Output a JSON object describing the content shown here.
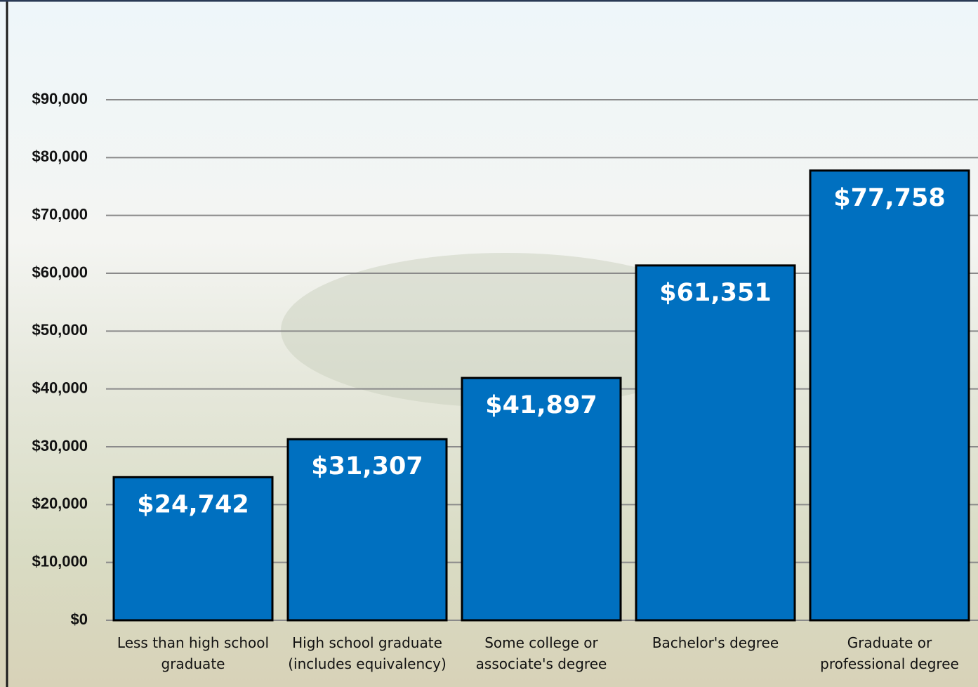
{
  "chart_data": {
    "type": "bar",
    "categories": [
      "Less than high school graduate",
      "High school graduate (includes equivalency)",
      "Some college or associate's degree",
      "Bachelor's degree",
      "Graduate or professional degree"
    ],
    "values": [
      24742,
      31307,
      41897,
      61351,
      77758
    ],
    "value_labels": [
      "$24,742",
      "$31,307",
      "$41,897",
      "$61,351",
      "$77,758"
    ],
    "color": "#0070c0",
    "ylim": [
      0,
      90000
    ],
    "yticks": [
      {
        "value": 0,
        "label": "$0"
      },
      {
        "value": 10000,
        "label": "$10,000"
      },
      {
        "value": 20000,
        "label": "$20,000"
      },
      {
        "value": 30000,
        "label": "$30,000"
      },
      {
        "value": 40000,
        "label": "$40,000"
      },
      {
        "value": 50000,
        "label": "$50,000"
      },
      {
        "value": 60000,
        "label": "$60,000"
      },
      {
        "value": 70000,
        "label": "$70,000"
      },
      {
        "value": 80000,
        "label": "$80,000"
      },
      {
        "value": 90000,
        "label": "$90,000"
      }
    ],
    "grid": true
  }
}
